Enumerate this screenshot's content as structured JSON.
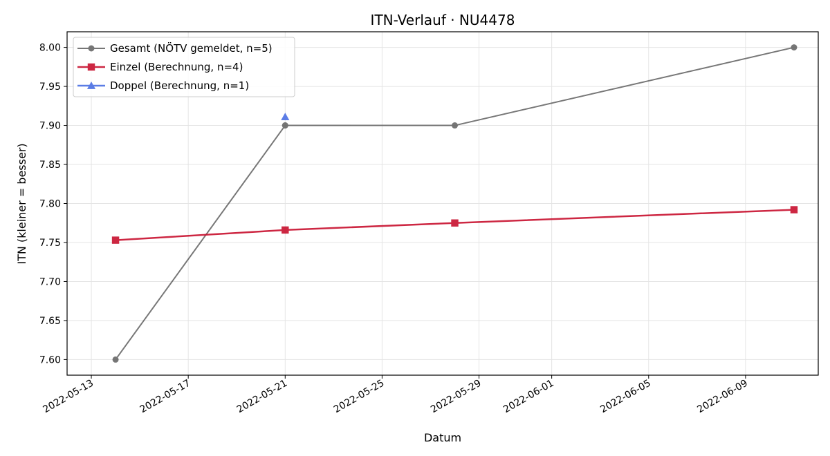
{
  "chart_data": {
    "type": "line",
    "title": "ITN-Verlauf · NU4478",
    "xlabel": "Datum",
    "ylabel": "ITN  (kleiner = besser)",
    "x_type": "date",
    "xlim": [
      "2022-05-12",
      "2022-06-12"
    ],
    "ylim": [
      7.58,
      8.02
    ],
    "x_ticks": [
      "2022-05-13",
      "2022-05-17",
      "2022-05-21",
      "2022-05-25",
      "2022-05-29",
      "2022-06-01",
      "2022-06-05",
      "2022-06-09"
    ],
    "y_ticks": [
      7.6,
      7.65,
      7.7,
      7.75,
      7.8,
      7.85,
      7.9,
      7.95,
      8.0
    ],
    "grid": true,
    "legend_position": "top-left",
    "series": [
      {
        "name": "Gesamt (NÖTV gemeldet, n=5)",
        "color": "#555555",
        "marker": "circle",
        "points": [
          {
            "x": "2022-05-14",
            "y": 7.6
          },
          {
            "x": "2022-05-21",
            "y": 7.9
          },
          {
            "x": "2022-05-21",
            "y": 7.9
          },
          {
            "x": "2022-05-28",
            "y": 7.9
          },
          {
            "x": "2022-06-11",
            "y": 8.0
          }
        ]
      },
      {
        "name": "Einzel (Berechnung, n=4)",
        "color": "#c8102e",
        "marker": "square",
        "points": [
          {
            "x": "2022-05-14",
            "y": 7.753
          },
          {
            "x": "2022-05-21",
            "y": 7.766
          },
          {
            "x": "2022-05-28",
            "y": 7.775
          },
          {
            "x": "2022-06-11",
            "y": 7.792
          }
        ]
      },
      {
        "name": "Doppel (Berechnung, n=1)",
        "color": "#4a6fe3",
        "marker": "triangle",
        "points": [
          {
            "x": "2022-05-21",
            "y": 7.911
          }
        ]
      }
    ]
  }
}
